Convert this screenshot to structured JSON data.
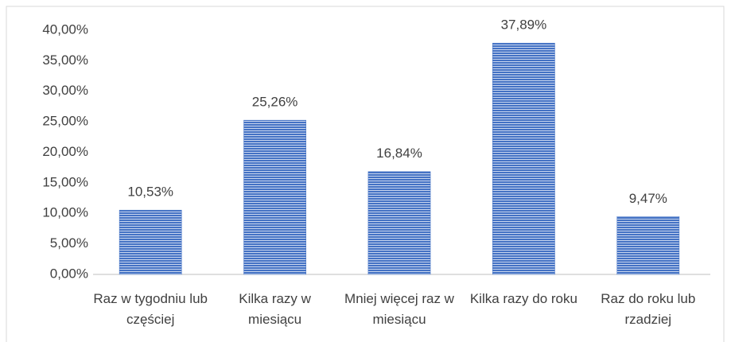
{
  "chart_data": {
    "type": "bar",
    "categories": [
      "Raz w tygodniu lub częściej",
      "Kilka razy w miesiącu",
      "Mniej więcej raz w miesiącu",
      "Kilka razy do roku",
      "Raz do roku lub rzadziej"
    ],
    "values": [
      10.53,
      25.26,
      16.84,
      37.89,
      9.47
    ],
    "value_labels": [
      "10,53%",
      "25,26%",
      "16,84%",
      "37,89%",
      "9,47%"
    ],
    "color": "#4472c4",
    "ylim": [
      0,
      40
    ],
    "yticks": [
      {
        "value": 0,
        "label": "0,00%"
      },
      {
        "value": 5,
        "label": "5,00%"
      },
      {
        "value": 10,
        "label": "10,00%"
      },
      {
        "value": 15,
        "label": "15,00%"
      },
      {
        "value": 20,
        "label": "20,00%"
      },
      {
        "value": 25,
        "label": "25,00%"
      },
      {
        "value": 30,
        "label": "30,00%"
      },
      {
        "value": 35,
        "label": "35,00%"
      },
      {
        "value": 40,
        "label": "40,00%"
      }
    ],
    "grid": false
  }
}
